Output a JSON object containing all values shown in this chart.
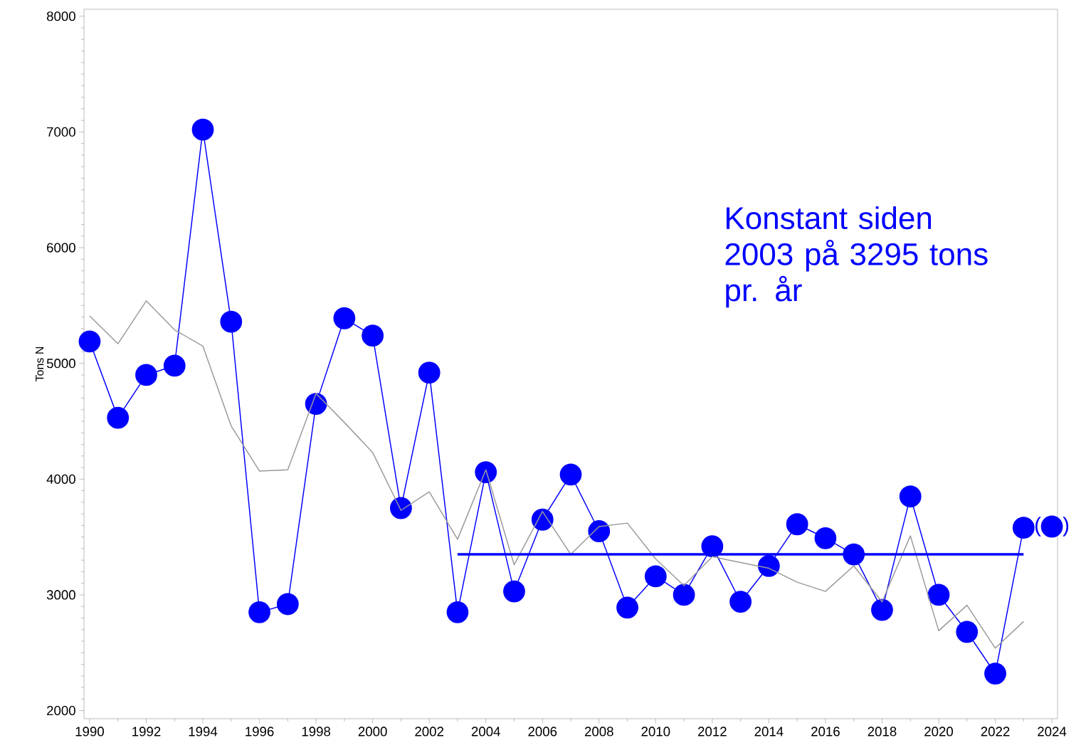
{
  "chart_data": {
    "type": "line",
    "ylabel": "Tons N",
    "x": [
      1990,
      1991,
      1992,
      1993,
      1994,
      1995,
      1996,
      1997,
      1998,
      1999,
      2000,
      2001,
      2002,
      2003,
      2004,
      2005,
      2006,
      2007,
      2008,
      2009,
      2010,
      2011,
      2012,
      2013,
      2014,
      2015,
      2016,
      2017,
      2018,
      2019,
      2020,
      2021,
      2022,
      2023
    ],
    "series": [
      {
        "color": "#0000ff",
        "marker": "circle",
        "values": [
          5190,
          4530,
          4900,
          4980,
          7020,
          5360,
          2850,
          2920,
          4650,
          5390,
          5240,
          3750,
          4920,
          2850,
          4060,
          3030,
          3650,
          4040,
          3550,
          2890,
          3160,
          3000,
          3420,
          2940,
          3250,
          3610,
          3490,
          3350,
          2870,
          3850,
          3000,
          2680,
          2320,
          3580
        ]
      },
      {
        "color": "#999999",
        "marker": "none",
        "values": [
          5410,
          5170,
          5540,
          5290,
          5150,
          4460,
          4070,
          4080,
          4740,
          4490,
          4230,
          3730,
          3890,
          3480,
          4080,
          3260,
          3720,
          3350,
          3590,
          3620,
          3310,
          3080,
          3330,
          3280,
          3230,
          3110,
          3030,
          3250,
          2940,
          3510,
          2690,
          2910,
          2540,
          2770
        ]
      },
      {
        "color": "#0000ff",
        "marker": "none",
        "x": [
          2003,
          2023
        ],
        "values": [
          3350,
          3350
        ]
      },
      {
        "type": "scatter",
        "color": "#0000ff",
        "marker": "circle",
        "x": [
          2024
        ],
        "values": [
          3590
        ]
      }
    ],
    "annotations": [
      "Konstant siden 2003 på 3295 tons pr. år",
      {
        "text": "(",
        "x": 2024,
        "y": 3590
      },
      {
        "text": ")",
        "x": 2024,
        "y": 3590
      }
    ],
    "xlim": [
      1989.8,
      2024.2
    ],
    "ylim": [
      1930,
      8060
    ],
    "xticks": [
      1990,
      1992,
      1994,
      1996,
      1998,
      2000,
      2002,
      2004,
      2006,
      2008,
      2010,
      2012,
      2014,
      2016,
      2018,
      2020,
      2022,
      2024
    ],
    "yticks": [
      2000,
      3000,
      4000,
      5000,
      6000,
      7000,
      8000
    ],
    "grid": false
  }
}
